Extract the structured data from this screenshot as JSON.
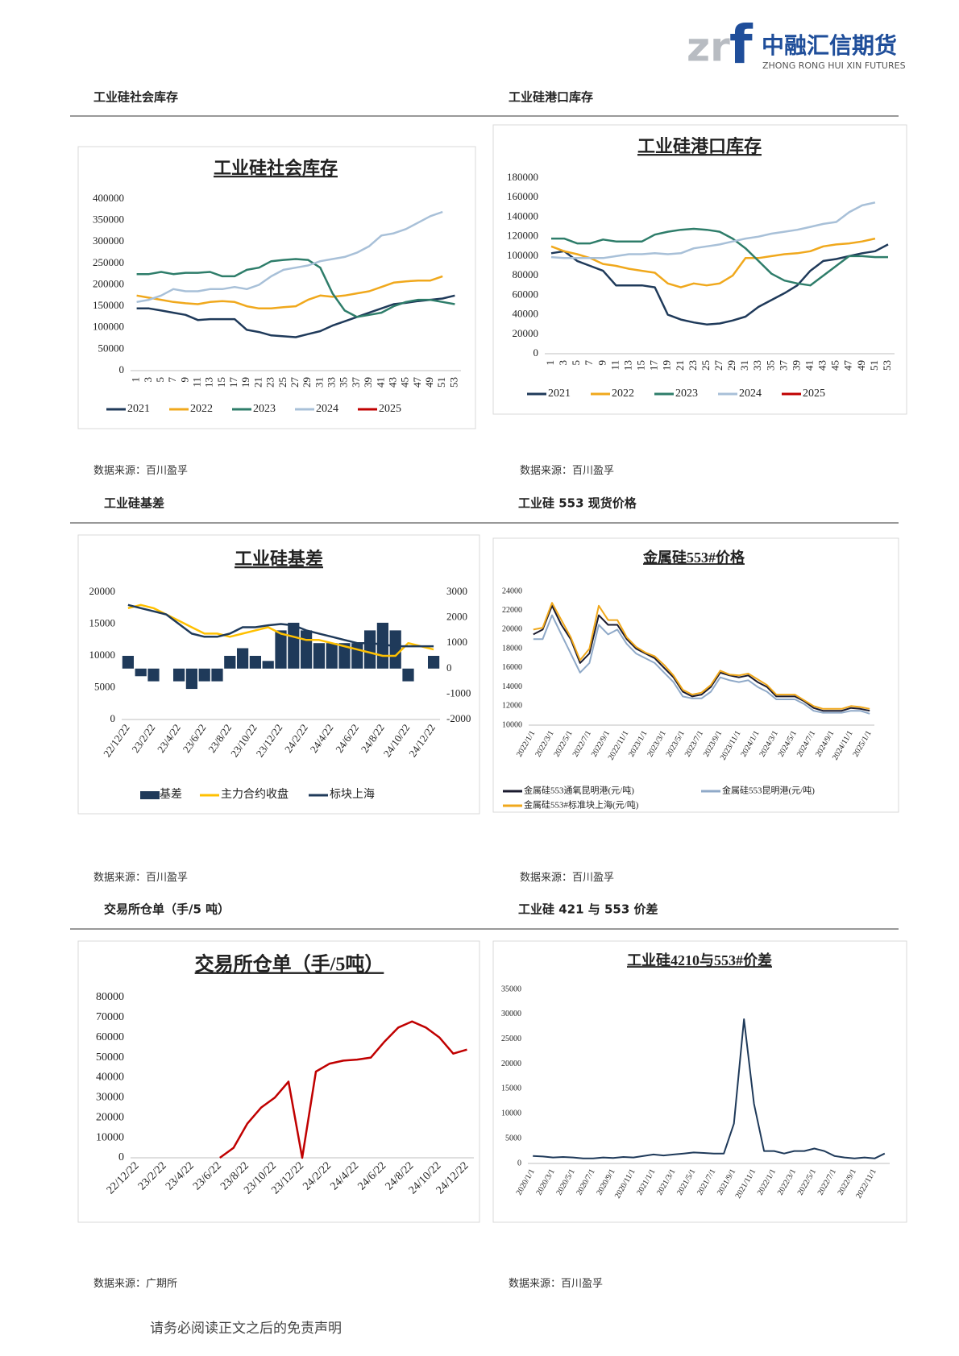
{
  "header": {
    "logo_mark": "zr",
    "logo_f": "f",
    "brand": "中融汇信期货",
    "brand_en": "ZHONG RONG HUI XIN FUTURES"
  },
  "sections": [
    {
      "title": "工业硅社会库存",
      "source": "数据来源：百川盈孚"
    },
    {
      "title": "工业硅港口库存",
      "source": "数据来源：百川盈孚"
    },
    {
      "title": "工业硅基差",
      "source": "数据来源：百川盈孚"
    },
    {
      "title": "工业硅 553 现货价格",
      "source": "数据来源：百川盈孚"
    },
    {
      "title": "交易所仓单（手/5 吨）",
      "source": "数据来源：广期所"
    },
    {
      "title": "工业硅 421 与 553 价差",
      "source": "数据来源：百川盈孚"
    }
  ],
  "chart_data": [
    {
      "type": "line",
      "title": "工业硅社会库存",
      "categories": [
        1,
        3,
        5,
        7,
        9,
        11,
        13,
        15,
        17,
        19,
        21,
        23,
        25,
        27,
        29,
        31,
        33,
        35,
        37,
        39,
        41,
        43,
        45,
        47,
        49,
        51,
        53
      ],
      "series": [
        {
          "name": "2021",
          "color": "#1f3a5a",
          "values": [
            145000,
            145000,
            140000,
            135000,
            130000,
            118000,
            120000,
            120000,
            120000,
            95000,
            90000,
            82000,
            80000,
            78000,
            85000,
            92000,
            105000,
            115000,
            125000,
            135000,
            145000,
            155000,
            158000,
            162000,
            165000,
            168000,
            175000
          ]
        },
        {
          "name": "2022",
          "color": "#f0a81c",
          "values": [
            175000,
            170000,
            165000,
            160000,
            157000,
            155000,
            160000,
            162000,
            160000,
            150000,
            145000,
            145000,
            148000,
            150000,
            165000,
            175000,
            172000,
            175000,
            180000,
            185000,
            195000,
            205000,
            208000,
            210000,
            210000,
            220000,
            null
          ]
        },
        {
          "name": "2023",
          "color": "#2e7d6a",
          "values": [
            225000,
            225000,
            230000,
            225000,
            228000,
            228000,
            230000,
            220000,
            220000,
            235000,
            240000,
            255000,
            258000,
            260000,
            258000,
            240000,
            180000,
            140000,
            125000,
            130000,
            135000,
            150000,
            160000,
            165000,
            165000,
            160000,
            155000
          ]
        },
        {
          "name": "2024",
          "color": "#a8c0d8",
          "values": [
            160000,
            165000,
            175000,
            190000,
            185000,
            185000,
            190000,
            190000,
            195000,
            190000,
            200000,
            220000,
            235000,
            240000,
            245000,
            255000,
            260000,
            265000,
            275000,
            290000,
            315000,
            320000,
            330000,
            345000,
            360000,
            370000,
            null
          ]
        },
        {
          "name": "2025",
          "color": "#c00000",
          "values": [
            null,
            null,
            null,
            null,
            null,
            null,
            null,
            null,
            null,
            null,
            null,
            null,
            null,
            null,
            null,
            null,
            null,
            null,
            null,
            null,
            null,
            null,
            null,
            null,
            null,
            null,
            null
          ]
        }
      ],
      "ylim": [
        0,
        400000
      ],
      "yticks": [
        0,
        50000,
        100000,
        150000,
        200000,
        250000,
        300000,
        350000,
        400000
      ],
      "grid": false,
      "legend": "bottom"
    },
    {
      "type": "line",
      "title": "工业硅港口库存",
      "categories": [
        1,
        3,
        5,
        7,
        9,
        11,
        13,
        15,
        17,
        19,
        21,
        23,
        25,
        27,
        29,
        31,
        33,
        35,
        37,
        39,
        41,
        43,
        45,
        47,
        49,
        51,
        53
      ],
      "series": [
        {
          "name": "2021",
          "color": "#1f3a5a",
          "values": [
            103000,
            105000,
            95000,
            90000,
            85000,
            70000,
            70000,
            70000,
            68000,
            40000,
            35000,
            32000,
            30000,
            31000,
            34000,
            38000,
            48000,
            55000,
            62000,
            70000,
            85000,
            95000,
            97000,
            100000,
            103000,
            105000,
            112000
          ]
        },
        {
          "name": "2022",
          "color": "#f0a81c",
          "values": [
            110000,
            105000,
            102000,
            98000,
            92000,
            90000,
            87000,
            85000,
            83000,
            72000,
            68000,
            72000,
            70000,
            72000,
            80000,
            98000,
            98000,
            100000,
            102000,
            103000,
            105000,
            110000,
            112000,
            113000,
            115000,
            118000,
            null
          ]
        },
        {
          "name": "2023",
          "color": "#2e7d6a",
          "values": [
            118000,
            118000,
            113000,
            113000,
            117000,
            115000,
            115000,
            115000,
            122000,
            125000,
            127000,
            128000,
            127000,
            125000,
            118000,
            108000,
            95000,
            82000,
            75000,
            72000,
            70000,
            80000,
            90000,
            100000,
            100000,
            99000,
            99000
          ]
        },
        {
          "name": "2024",
          "color": "#a8c0d8",
          "values": [
            99000,
            98000,
            98000,
            98000,
            98000,
            100000,
            102000,
            102000,
            103000,
            102000,
            103000,
            108000,
            110000,
            112000,
            115000,
            118000,
            120000,
            123000,
            125000,
            127000,
            130000,
            133000,
            135000,
            145000,
            152000,
            155000,
            null
          ]
        },
        {
          "name": "2025",
          "color": "#c00000",
          "values": [
            null,
            null,
            null,
            null,
            null,
            null,
            null,
            null,
            null,
            null,
            null,
            null,
            null,
            null,
            null,
            null,
            null,
            null,
            null,
            null,
            null,
            null,
            null,
            null,
            null,
            null,
            null
          ]
        }
      ],
      "ylim": [
        0,
        180000
      ],
      "yticks": [
        0,
        20000,
        40000,
        60000,
        80000,
        100000,
        120000,
        140000,
        160000,
        180000
      ],
      "grid": false,
      "legend": "bottom"
    },
    {
      "type": "combo",
      "title": "工业硅基差",
      "categories": [
        "22/12/22",
        null,
        "23/2/22",
        null,
        "23/4/22",
        null,
        "23/6/22",
        null,
        "23/8/22",
        null,
        "23/10/22",
        null,
        "23/12/22",
        null,
        "24/2/22",
        null,
        "24/4/22",
        null,
        "24/6/22",
        null,
        "24/8/22",
        null,
        "24/10/22",
        null,
        "24/12/22"
      ],
      "series": [
        {
          "name": "基差",
          "color": "#1f3a5a",
          "axis": "y2",
          "values": [
            500,
            -300,
            -500,
            0,
            -500,
            -800,
            -500,
            -500,
            500,
            800,
            500,
            300,
            1500,
            1800,
            1500,
            1000,
            1000,
            1000,
            1000,
            1500,
            1800,
            1500,
            -500,
            0,
            500
          ]
        },
        {
          "name": "主力合约收盘",
          "color": "#ffc000",
          "values": [
            17500,
            18000,
            17500,
            16500,
            15500,
            14500,
            13500,
            13500,
            13000,
            13500,
            14000,
            14500,
            13500,
            13000,
            12500,
            12500,
            12000,
            11500,
            11000,
            10500,
            10000,
            10000,
            12000,
            11500,
            11000
          ]
        },
        {
          "name": "标块上海",
          "color": "#1f3a5a",
          "values": [
            18000,
            17500,
            17000,
            16500,
            15000,
            13500,
            13000,
            13000,
            13500,
            14500,
            14500,
            14800,
            15000,
            14800,
            14000,
            13500,
            13000,
            12500,
            12000,
            12000,
            11800,
            11500,
            11500,
            11500,
            11500
          ]
        }
      ],
      "ylim": [
        0,
        20000
      ],
      "yticks": [
        0,
        5000,
        10000,
        15000,
        20000
      ],
      "y2lim": [
        -2000,
        3000
      ],
      "y2ticks": [
        -2000,
        -1000,
        0,
        1000,
        2000,
        3000
      ],
      "grid": false,
      "legend": "bottom"
    },
    {
      "type": "line",
      "title": "金属硅553#价格",
      "categories": [
        "2022/1/1",
        null,
        "2022/3/1",
        null,
        "2022/5/1",
        null,
        "2022/7/1",
        null,
        "2022/9/1",
        null,
        "2022/11/1",
        null,
        "2023/1/1",
        null,
        "2023/3/1",
        null,
        "2023/5/1",
        null,
        "2023/7/1",
        null,
        "2023/9/1",
        null,
        "2023/11/1",
        null,
        "2024/1/1",
        null,
        "2024/3/1",
        null,
        "2024/5/1",
        null,
        "2024/7/1",
        null,
        "2024/9/1",
        null,
        "2024/11/1",
        null,
        "2025/1/1"
      ],
      "series": [
        {
          "name": "金属硅553通氧昆明港(元/吨)",
          "color": "#1a1a2e",
          "values": [
            19500,
            20000,
            22500,
            20500,
            19000,
            16500,
            17500,
            21500,
            20500,
            20500,
            19000,
            18000,
            17500,
            17000,
            16000,
            15000,
            13500,
            13000,
            13200,
            14000,
            15500,
            15200,
            15000,
            15200,
            14500,
            14000,
            13000,
            13000,
            13000,
            12500,
            11800,
            11500,
            11500,
            11500,
            11800,
            11700,
            11500
          ]
        },
        {
          "name": "金属硅553昆明港(元/吨)",
          "color": "#8fa9c8",
          "values": [
            19000,
            19000,
            21500,
            19500,
            17500,
            15500,
            16500,
            20500,
            19500,
            20000,
            18500,
            17500,
            17000,
            16500,
            15500,
            14500,
            13000,
            12800,
            12800,
            13500,
            15000,
            14700,
            14500,
            14700,
            14000,
            13500,
            12700,
            12700,
            12700,
            12200,
            11500,
            11300,
            11300,
            11300,
            11500,
            11500,
            11200
          ]
        },
        {
          "name": "金属硅553#标准块上海(元/吨)",
          "color": "#f0a81c",
          "values": [
            20000,
            20200,
            22800,
            21000,
            19200,
            16800,
            18000,
            22500,
            21000,
            21000,
            19200,
            18200,
            17600,
            17200,
            16300,
            15200,
            13700,
            13200,
            13400,
            14200,
            15700,
            15300,
            15200,
            15400,
            14800,
            14200,
            13200,
            13200,
            13200,
            12600,
            12000,
            11700,
            11700,
            11700,
            12000,
            11900,
            11700
          ]
        }
      ],
      "ylim": [
        10000,
        24000
      ],
      "yticks": [
        10000,
        12000,
        14000,
        16000,
        18000,
        20000,
        22000,
        24000
      ],
      "grid": false,
      "legend": "bottom"
    },
    {
      "type": "line",
      "title": "交易所仓单（手/5吨）",
      "categories": [
        "22/12/22",
        null,
        "23/2/22",
        null,
        "23/4/22",
        null,
        "23/6/22",
        null,
        "23/8/22",
        null,
        "23/10/22",
        null,
        "23/12/22",
        null,
        "24/2/22",
        null,
        "24/4/22",
        null,
        "24/6/22",
        null,
        "24/8/22",
        null,
        "24/10/22",
        null,
        "24/12/22"
      ],
      "series": [
        {
          "name": "仓单",
          "color": "#c00000",
          "values": [
            null,
            null,
            null,
            null,
            null,
            null,
            0,
            5000,
            17000,
            25000,
            30000,
            38000,
            0,
            43000,
            47000,
            48500,
            49000,
            50000,
            58000,
            65000,
            68000,
            65000,
            60000,
            52000,
            54000
          ]
        }
      ],
      "ylim": [
        0,
        80000
      ],
      "yticks": [
        0,
        10000,
        20000,
        30000,
        40000,
        50000,
        60000,
        70000,
        80000
      ],
      "grid": false
    },
    {
      "type": "line",
      "title": "工业硅4210与553#价差",
      "categories": [
        "2020/1/1",
        null,
        "2020/3/1",
        null,
        "2020/5/1",
        null,
        "2020/7/1",
        null,
        "2020/9/1",
        null,
        "2020/11/1",
        null,
        "2021/1/1",
        null,
        "2021/3/1",
        null,
        "2021/5/1",
        null,
        "2021/7/1",
        null,
        "2021/9/1",
        null,
        "2021/11/1",
        null,
        "2022/1/1",
        null,
        "2022/3/1",
        null,
        "2022/5/1",
        null,
        "2022/7/1",
        null,
        "2022/9/1",
        null,
        "2022/11/1",
        null
      ],
      "series": [
        {
          "name": "价差",
          "color": "#1f3a5a",
          "values": [
            1500,
            1400,
            1200,
            1300,
            1200,
            1000,
            1000,
            1200,
            1100,
            1300,
            1200,
            1500,
            1800,
            1600,
            1800,
            2000,
            2200,
            2100,
            2000,
            2000,
            8000,
            29000,
            12000,
            2500,
            2500,
            2000,
            2500,
            2500,
            3000,
            2500,
            1500,
            1200,
            1000,
            1200,
            1000,
            2000
          ]
        }
      ],
      "ylim": [
        0,
        35000
      ],
      "yticks": [
        0,
        5000,
        10000,
        15000,
        20000,
        25000,
        30000,
        35000
      ],
      "grid": false
    }
  ],
  "footer": "请务必阅读正文之后的免责声明"
}
